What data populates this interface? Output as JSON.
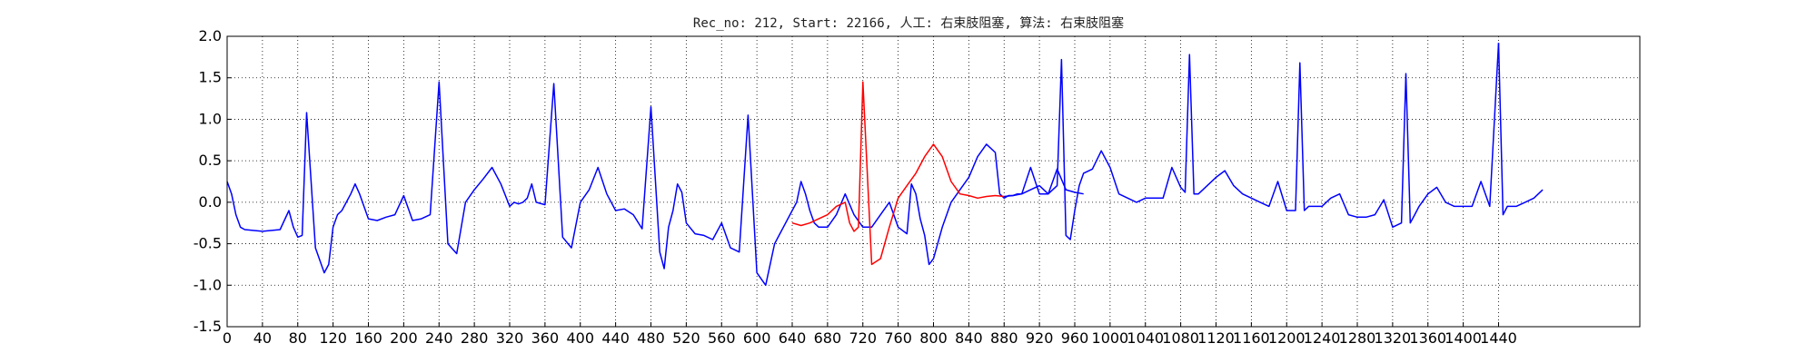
{
  "chart_data": {
    "type": "line",
    "title": "Rec_no: 212, Start: 22166, 人工: 右束肢阻塞, 算法: 右束肢阻塞",
    "xlabel": "",
    "ylabel": "",
    "xlim": [
      0,
      1600
    ],
    "ylim": [
      -1.5,
      2.0
    ],
    "grid": true,
    "grid_style": "dotted",
    "yticks": [
      -1.5,
      -1.0,
      -0.5,
      0.0,
      0.5,
      1.0,
      1.5,
      2.0
    ],
    "ytick_labels": [
      "-1.5",
      "-1.0",
      "-0.5",
      "0.0",
      "0.5",
      "1.0",
      "1.5",
      "2.0"
    ],
    "xticks": [
      0,
      40,
      80,
      120,
      160,
      200,
      240,
      280,
      320,
      360,
      400,
      440,
      480,
      520,
      560,
      600,
      640,
      680,
      720,
      760,
      800,
      840,
      880,
      920,
      960,
      1000,
      1040,
      1080,
      1120,
      1160,
      1200,
      1240,
      1280,
      1320,
      1360,
      1400,
      1440
    ],
    "xtick_labels": [
      "0",
      "40",
      "80",
      "120",
      "160",
      "200",
      "240",
      "280",
      "320",
      "360",
      "400",
      "440",
      "480",
      "520",
      "560",
      "600",
      "640",
      "680",
      "720",
      "760",
      "800",
      "840",
      "880",
      "920",
      "960",
      "1000",
      "1040",
      "1080",
      "1120",
      "1160",
      "1200",
      "1240",
      "1280",
      "1320",
      "1360",
      "1400",
      "1440"
    ],
    "series": [
      {
        "color": "#0000ff",
        "x": [
          0,
          5,
          10,
          15,
          20,
          40,
          60,
          70,
          75,
          80,
          85,
          90,
          100,
          110,
          115,
          120,
          125,
          130,
          135,
          140,
          145,
          150,
          160,
          170,
          180,
          190,
          200,
          210,
          220,
          230,
          240,
          250,
          260,
          270,
          280,
          290,
          300,
          310,
          320,
          325,
          330,
          335,
          340,
          345,
          350,
          360,
          370,
          380,
          390,
          400,
          410,
          420,
          430,
          440,
          450,
          460,
          470,
          480,
          490,
          495,
          500,
          505,
          510,
          515,
          520,
          530,
          540,
          550,
          560,
          570,
          580,
          590,
          600,
          610,
          620,
          630,
          640,
          645,
          650,
          655,
          660,
          665,
          670,
          680,
          690,
          700,
          710,
          720,
          730,
          740,
          750,
          760,
          770,
          775,
          780,
          785,
          790,
          795,
          800,
          810,
          820,
          830,
          840,
          850,
          860,
          870,
          875,
          880,
          885,
          890,
          895,
          900,
          910,
          920,
          930,
          940,
          950,
          960,
          970
        ],
        "y": [
          0.25,
          0.1,
          -0.15,
          -0.3,
          -0.33,
          -0.35,
          -0.33,
          -0.1,
          -0.3,
          -0.42,
          -0.4,
          1.08,
          -0.55,
          -0.85,
          -0.75,
          -0.3,
          -0.15,
          -0.1,
          0.0,
          0.1,
          0.22,
          0.1,
          -0.2,
          -0.22,
          -0.18,
          -0.15,
          0.08,
          -0.22,
          -0.2,
          -0.15,
          1.45,
          -0.5,
          -0.62,
          0.0,
          0.15,
          0.28,
          0.42,
          0.22,
          -0.05,
          0.0,
          -0.02,
          0.0,
          0.05,
          0.22,
          0.0,
          -0.03,
          1.43,
          -0.42,
          -0.55,
          0.0,
          0.15,
          0.42,
          0.1,
          -0.1,
          -0.08,
          -0.15,
          -0.32,
          1.15,
          -0.6,
          -0.8,
          -0.3,
          -0.1,
          0.22,
          0.12,
          -0.25,
          -0.38,
          -0.4,
          -0.45,
          -0.25,
          -0.55,
          -0.6,
          1.05,
          -0.85,
          -1.0,
          -0.5,
          -0.3,
          -0.1,
          0.0,
          0.25,
          0.1,
          -0.1,
          -0.25,
          -0.3,
          -0.3,
          -0.15,
          0.1,
          -0.15,
          -0.3,
          -0.3,
          -0.15,
          0.0,
          -0.3,
          -0.38,
          0.22,
          0.1,
          -0.2,
          -0.4,
          -0.75,
          -0.68,
          -0.3,
          0.0,
          0.15,
          0.3,
          0.55,
          0.7,
          0.6,
          0.1,
          0.05,
          0.08,
          0.08,
          0.1,
          0.1,
          0.15,
          0.2,
          0.1,
          0.4,
          0.15,
          0.12,
          0.1
        ]
      },
      {
        "color": "#ff0000",
        "x": [
          640,
          650,
          660,
          670,
          680,
          690,
          700,
          705,
          710,
          715,
          720,
          730,
          740,
          750,
          760,
          770,
          780,
          790,
          800,
          810,
          820,
          830,
          840,
          850,
          860,
          870,
          880
        ],
        "y": [
          -0.25,
          -0.28,
          -0.25,
          -0.2,
          -0.15,
          -0.05,
          0.0,
          -0.25,
          -0.35,
          -0.3,
          1.45,
          -0.75,
          -0.68,
          -0.3,
          0.05,
          0.2,
          0.35,
          0.55,
          0.7,
          0.55,
          0.25,
          0.1,
          0.08,
          0.05,
          0.07,
          0.08,
          0.07
        ]
      },
      {
        "color": "#0000ff",
        "x": [
          880,
          890,
          900,
          910,
          920,
          930,
          940,
          945,
          950,
          955,
          960,
          965,
          970,
          980,
          990,
          1000,
          1010,
          1020,
          1030,
          1040,
          1050,
          1060,
          1070,
          1080,
          1085,
          1090,
          1095,
          1100,
          1110,
          1120,
          1130,
          1140,
          1150,
          1160,
          1170,
          1180,
          1190,
          1200,
          1210,
          1215,
          1220,
          1225,
          1230,
          1240,
          1250,
          1260,
          1270,
          1280,
          1290,
          1300,
          1310,
          1320,
          1330,
          1335,
          1340,
          1345,
          1350,
          1360,
          1370,
          1380,
          1390,
          1400,
          1410,
          1420,
          1430,
          1440
        ],
        "y": [
          0.07,
          0.08,
          0.1,
          0.42,
          0.1,
          0.1,
          0.2,
          1.72,
          -0.4,
          -0.45,
          -0.1,
          0.2,
          0.35,
          0.4,
          0.62,
          0.42,
          0.1,
          0.05,
          0.0,
          0.05,
          0.05,
          0.05,
          0.42,
          0.18,
          0.12,
          1.78,
          0.1,
          0.1,
          0.2,
          0.3,
          0.38,
          0.2,
          0.1,
          0.05,
          0.0,
          -0.05,
          0.25,
          -0.1,
          -0.1,
          1.68,
          -0.1,
          -0.05,
          -0.05,
          -0.05,
          0.05,
          0.1,
          -0.15,
          -0.18,
          -0.18,
          -0.15,
          0.03,
          -0.3,
          -0.25,
          1.55,
          -0.25,
          -0.15,
          -0.05,
          0.1,
          0.18,
          0.0,
          -0.05,
          -0.05,
          -0.05,
          0.25,
          -0.05,
          1.92
        ]
      },
      {
        "color": "#0000ff",
        "x": [
          1440,
          1445,
          1450,
          1460,
          1470,
          1480,
          1490
        ],
        "y": [
          1.92,
          -0.15,
          -0.05,
          -0.05,
          0.0,
          0.05,
          0.15
        ]
      }
    ]
  }
}
